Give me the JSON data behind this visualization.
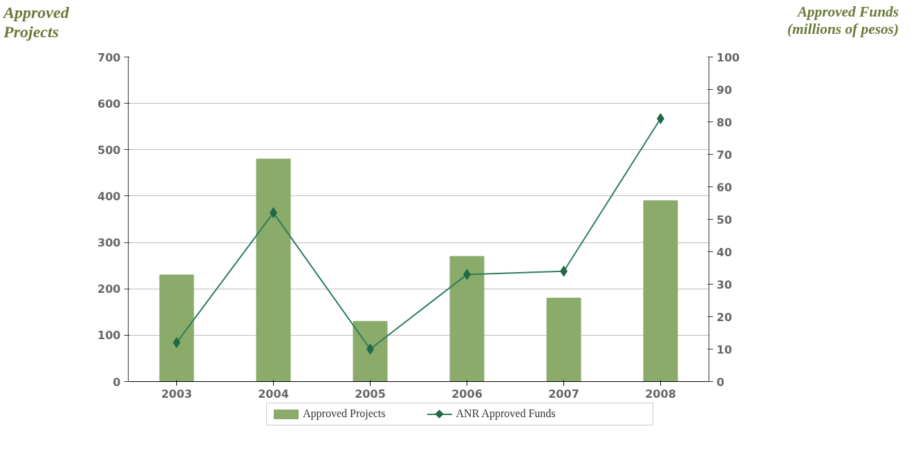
{
  "chart_data": {
    "type": "bar",
    "categories": [
      "2003",
      "2004",
      "2005",
      "2006",
      "2007",
      "2008"
    ],
    "ylabel": "Approved Projects",
    "y2label": "Approved Funds\n(millions of pesos)",
    "series": [
      {
        "name": "Approved Projects",
        "color": "#8aab6a",
        "values": [
          230,
          480,
          130,
          270,
          180,
          390
        ]
      },
      {
        "name": "ANR Approved Funds",
        "type": "line",
        "axis": "y2",
        "color": "#2e7d5a",
        "values": [
          12,
          52,
          10,
          33,
          34,
          81
        ]
      }
    ],
    "ylim": [
      0,
      700
    ],
    "yticks": [
      0,
      100,
      200,
      300,
      400,
      500,
      600,
      700
    ],
    "y2lim": [
      0,
      100
    ],
    "y2ticks": [
      0,
      10,
      20,
      30,
      40,
      50,
      60,
      70,
      80,
      90,
      100
    ],
    "grid": "y",
    "legend": "bottom",
    "marker": "diamond",
    "line_style": "solid"
  }
}
